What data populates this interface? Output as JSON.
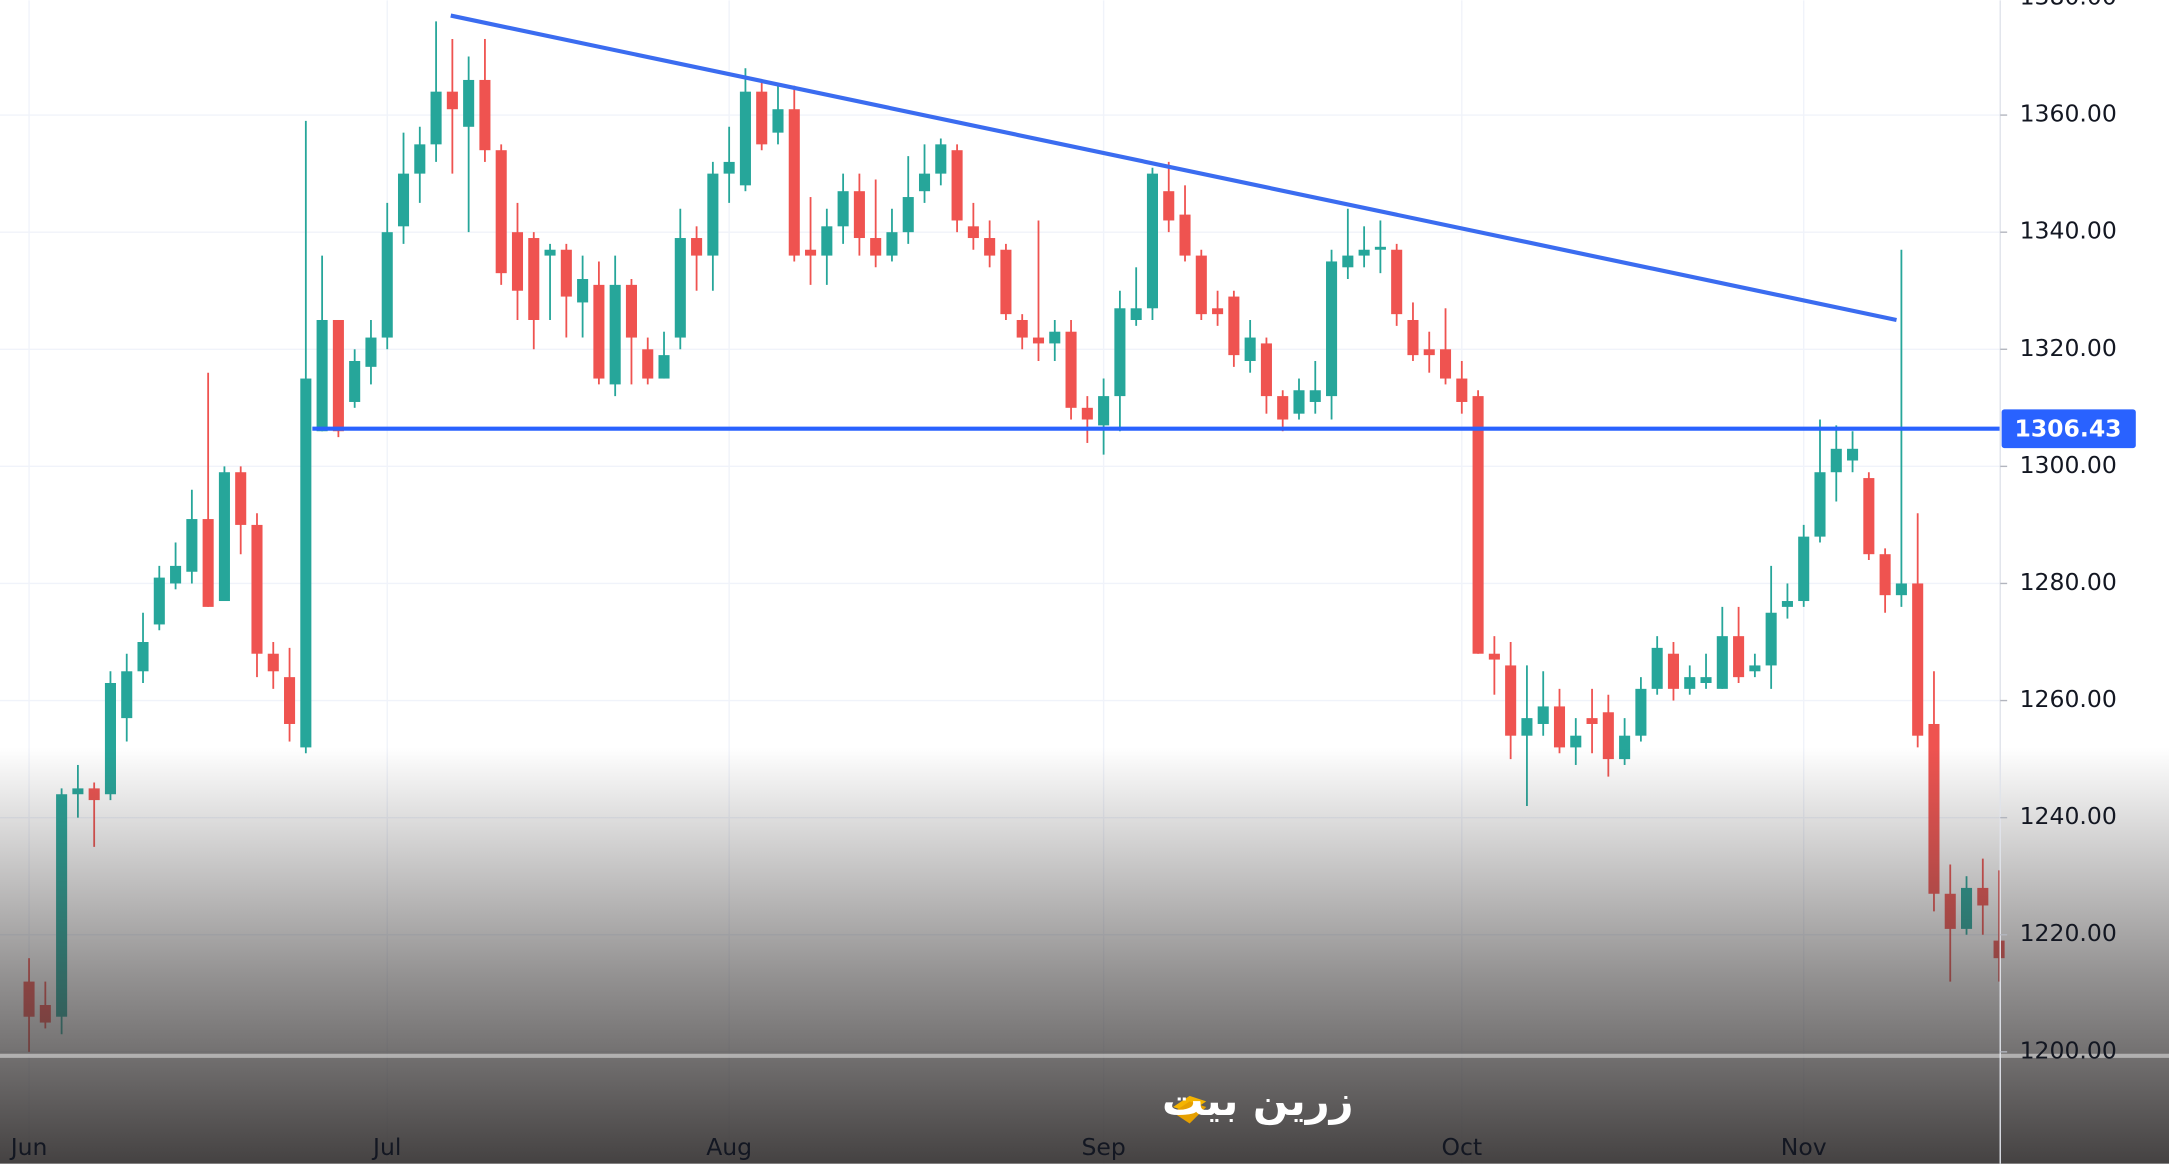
{
  "chart_data": {
    "type": "candlestick",
    "categories": [
      "Jun",
      null,
      null,
      null,
      null,
      null,
      null,
      null,
      null,
      null,
      null,
      null,
      null,
      null,
      null,
      null,
      null,
      null,
      null,
      null,
      null,
      null,
      "Jul",
      null,
      null,
      null,
      null,
      null,
      null,
      null,
      null,
      null,
      null,
      null,
      null,
      null,
      null,
      null,
      null,
      null,
      null,
      null,
      null,
      "Aug",
      null,
      null,
      null,
      null,
      null,
      null,
      null,
      null,
      null,
      null,
      null,
      null,
      null,
      null,
      null,
      null,
      null,
      null,
      null,
      null,
      null,
      null,
      "Sep",
      null,
      null,
      null,
      null,
      null,
      null,
      null,
      null,
      null,
      null,
      null,
      null,
      null,
      null,
      null,
      null,
      null,
      null,
      null,
      null,
      null,
      "Oct",
      null,
      null,
      null,
      null,
      null,
      null,
      null,
      null,
      null,
      null,
      null,
      null,
      null,
      null,
      null,
      null,
      null,
      null,
      null,
      null,
      "Nov",
      null,
      null,
      null,
      null,
      null,
      null,
      null,
      null,
      null,
      null,
      null,
      null
    ],
    "open": [
      1212,
      1208,
      1206,
      1244,
      1245,
      1244,
      1257,
      1265,
      1273,
      1280,
      1282,
      1291,
      1277,
      1299,
      1290,
      1268,
      1264,
      1252,
      1306,
      1325,
      1311,
      1317,
      1322,
      1341,
      1350,
      1355,
      1364,
      1358,
      1366,
      1354,
      1340,
      1339,
      1336,
      1337,
      1328,
      1331,
      1314,
      1331,
      1320,
      1315,
      1322,
      1339,
      1336,
      1350,
      1348,
      1364,
      1357,
      1361,
      1337,
      1336,
      1341,
      1347,
      1339,
      1336,
      1340,
      1347,
      1350,
      1354,
      1341,
      1339,
      1337,
      1325,
      1322,
      1321,
      1323,
      1310,
      1307,
      1312,
      1325,
      1327,
      1347,
      1343,
      1336,
      1327,
      1329,
      1318,
      1321,
      1312,
      1309,
      1311,
      1312,
      1334,
      1336,
      1337,
      1337,
      1325,
      1320,
      1320,
      1315,
      1312,
      1268,
      1266,
      1254,
      1256,
      1259,
      1252,
      1257,
      1258,
      1250,
      1254,
      1262,
      1268,
      1262,
      1263,
      1262,
      1271,
      1265,
      1266,
      1276,
      1277,
      1288,
      1299,
      1301,
      1298,
      1285,
      1278,
      1280,
      1256,
      1227,
      1221,
      1228,
      1219
    ],
    "high": [
      1216,
      1212,
      1245,
      1249,
      1246,
      1265,
      1268,
      1275,
      1283,
      1287,
      1296,
      1316,
      1300,
      1300,
      1292,
      1270,
      1269,
      1359,
      1336,
      1325,
      1320,
      1325,
      1345,
      1357,
      1358,
      1376,
      1373,
      1370,
      1373,
      1355,
      1345,
      1340,
      1338,
      1338,
      1336,
      1335,
      1336,
      1332,
      1322,
      1323,
      1344,
      1341,
      1352,
      1358,
      1368,
      1366,
      1365,
      1365,
      1346,
      1344,
      1350,
      1350,
      1349,
      1344,
      1353,
      1355,
      1356,
      1355,
      1345,
      1342,
      1338,
      1326,
      1342,
      1325,
      1325,
      1312,
      1315,
      1330,
      1334,
      1351,
      1352,
      1348,
      1337,
      1330,
      1330,
      1325,
      1322,
      1313,
      1315,
      1318,
      1337,
      1344,
      1341,
      1342,
      1338,
      1328,
      1323,
      1327,
      1318,
      1313,
      1271,
      1270,
      1266,
      1265,
      1262,
      1257,
      1262,
      1261,
      1257,
      1264,
      1271,
      1270,
      1266,
      1268,
      1276,
      1276,
      1268,
      1283,
      1280,
      1290,
      1308,
      1307,
      1306,
      1299,
      1286,
      1337,
      1292,
      1265,
      1232,
      1230,
      1233,
      1231
    ],
    "low": [
      1200,
      1204,
      1203,
      1240,
      1235,
      1243,
      1253,
      1263,
      1272,
      1279,
      1280,
      1276,
      1277,
      1285,
      1264,
      1262,
      1253,
      1251,
      1306,
      1305,
      1310,
      1314,
      1320,
      1338,
      1345,
      1352,
      1350,
      1340,
      1352,
      1331,
      1325,
      1320,
      1325,
      1322,
      1322,
      1314,
      1312,
      1314,
      1314,
      1315,
      1320,
      1330,
      1330,
      1345,
      1347,
      1354,
      1355,
      1335,
      1331,
      1331,
      1338,
      1336,
      1334,
      1335,
      1338,
      1345,
      1348,
      1340,
      1337,
      1334,
      1325,
      1320,
      1318,
      1318,
      1308,
      1304,
      1302,
      1306,
      1324,
      1325,
      1340,
      1335,
      1325,
      1324,
      1317,
      1316,
      1309,
      1306,
      1308,
      1309,
      1308,
      1332,
      1334,
      1333,
      1324,
      1318,
      1316,
      1314,
      1309,
      1268,
      1261,
      1250,
      1242,
      1254,
      1251,
      1249,
      1251,
      1247,
      1249,
      1253,
      1261,
      1260,
      1261,
      1262,
      1262,
      1263,
      1264,
      1262,
      1274,
      1276,
      1287,
      1294,
      1299,
      1284,
      1275,
      1276,
      1252,
      1224,
      1212,
      1220,
      1220,
      1212
    ],
    "close": [
      1206,
      1205,
      1244,
      1245,
      1243,
      1263,
      1265,
      1270,
      1281,
      1283,
      1291,
      1276,
      1299,
      1290,
      1268,
      1265,
      1256,
      1315,
      1325,
      1306,
      1318,
      1322,
      1340,
      1350,
      1355,
      1364,
      1361,
      1366,
      1354,
      1333,
      1330,
      1325,
      1337,
      1329,
      1332,
      1315,
      1331,
      1322,
      1315,
      1319,
      1339,
      1336,
      1350,
      1352,
      1364,
      1355,
      1361,
      1336,
      1336,
      1341,
      1347,
      1339,
      1336,
      1340,
      1346,
      1350,
      1355,
      1342,
      1339,
      1336,
      1326,
      1322,
      1321,
      1323,
      1310,
      1308,
      1312,
      1327,
      1327,
      1350,
      1342,
      1336,
      1326,
      1326,
      1319,
      1322,
      1312,
      1308,
      1313,
      1313,
      1335,
      1336,
      1337,
      1337.5,
      1326,
      1319,
      1319,
      1315,
      1311,
      1268,
      1267,
      1254,
      1257,
      1259,
      1252,
      1254,
      1256,
      1250,
      1254,
      1262,
      1269,
      1262,
      1264,
      1264,
      1271,
      1264,
      1266,
      1275,
      1277,
      1288,
      1299,
      1303,
      1303,
      1285,
      1278,
      1280,
      1254,
      1227,
      1221,
      1228,
      1225,
      1216
    ],
    "up_color": "#26a69a",
    "down_color": "#ef5350",
    "ylim": [
      1180.9,
      1379.6
    ],
    "yticks": [
      {
        "value": 1200,
        "label": "1200.00"
      },
      {
        "value": 1220,
        "label": "1220.00"
      },
      {
        "value": 1240,
        "label": "1240.00"
      },
      {
        "value": 1260,
        "label": "1260.00"
      },
      {
        "value": 1280,
        "label": "1280.00"
      },
      {
        "value": 1300,
        "label": "1300.00"
      },
      {
        "value": 1320,
        "label": "1320.00"
      },
      {
        "value": 1340,
        "label": "1340.00"
      },
      {
        "value": 1360,
        "label": "1360.00"
      },
      {
        "value": 1380,
        "label": "1380.00"
      }
    ],
    "grid": true,
    "price_line": {
      "value": 1306.43,
      "x_start": 17.4,
      "color": "#2962ff"
    },
    "trendline": {
      "x": [
        25.9,
        114.7
      ],
      "y": [
        1377,
        1325
      ],
      "color": "#3b6cf0"
    },
    "watermark": "زرین بیت"
  }
}
